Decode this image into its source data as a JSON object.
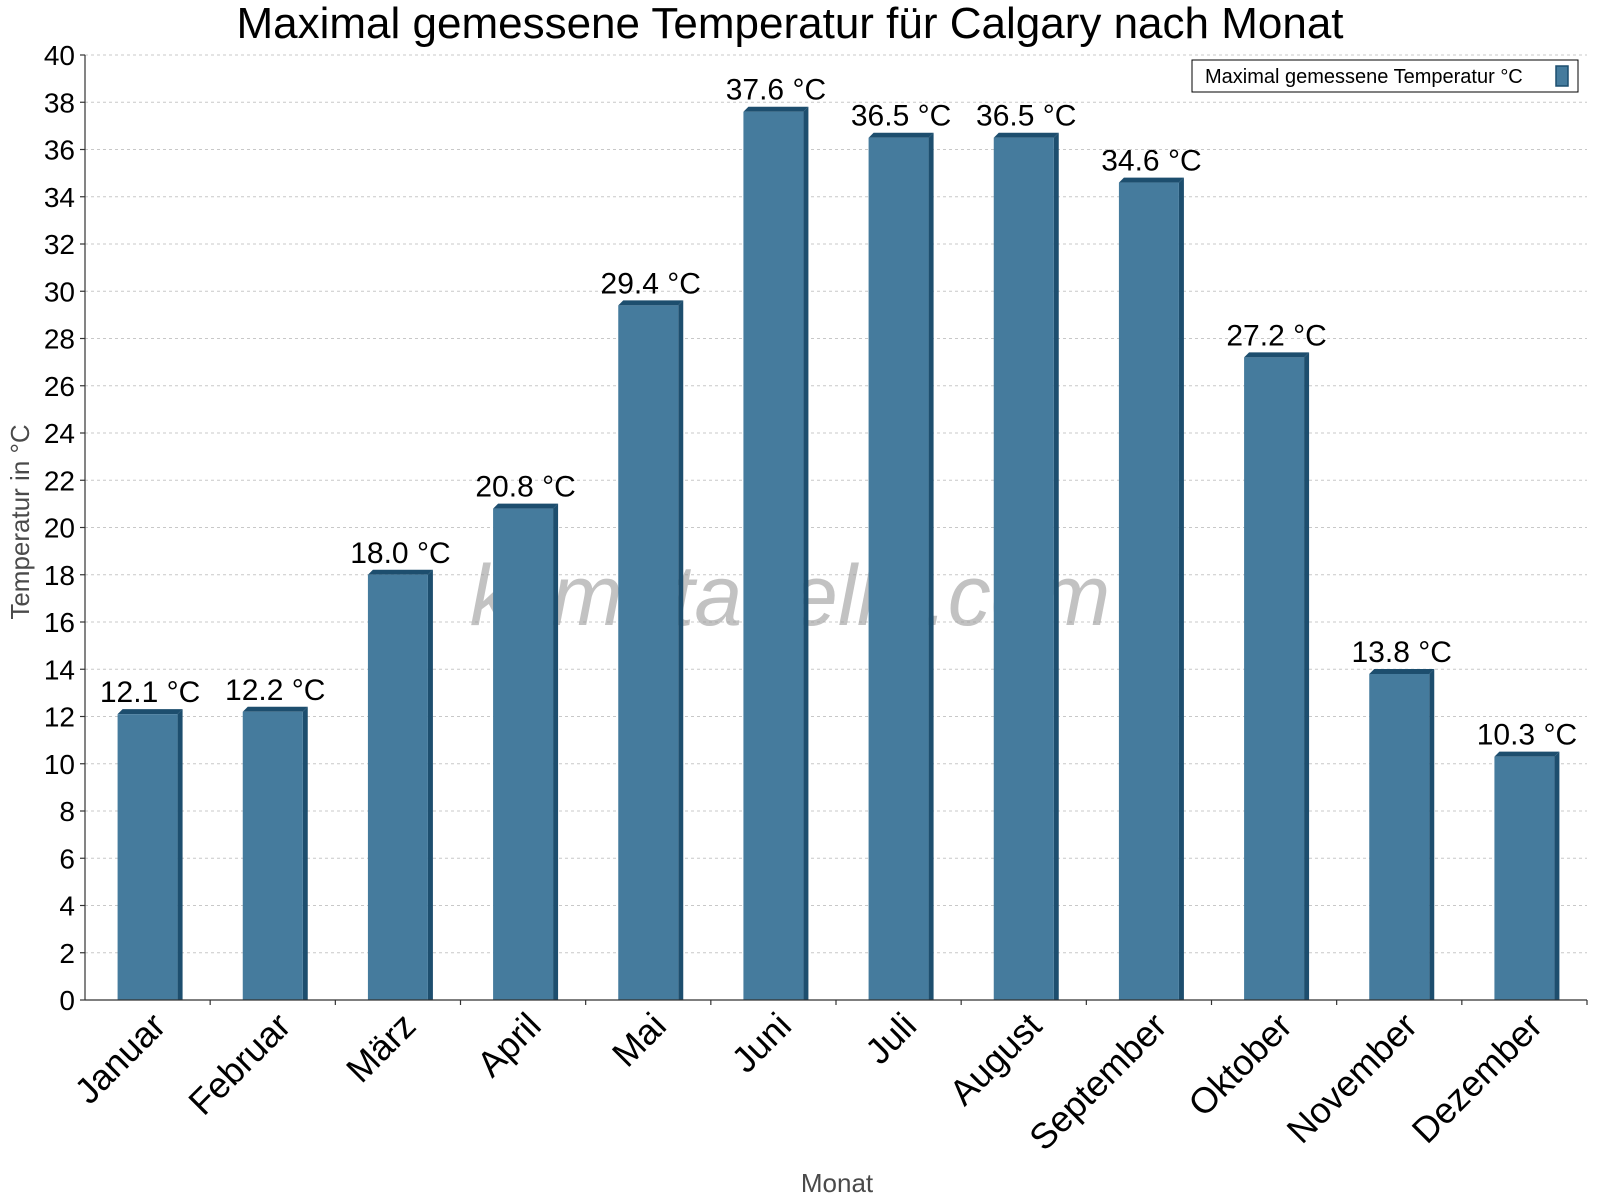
{
  "chart_data": {
    "type": "bar",
    "title": "Maximal gemessene Temperatur für Calgary nach Monat",
    "xlabel": "Monat",
    "ylabel": "Temperatur in °C",
    "ylim": [
      0,
      40
    ],
    "ytick_step": 2,
    "grid": true,
    "legend_position": "top-right",
    "categories": [
      "Januar",
      "Februar",
      "März",
      "April",
      "Mai",
      "Juni",
      "Juli",
      "August",
      "September",
      "Oktober",
      "November",
      "Dezember"
    ],
    "series": [
      {
        "name": "Maximal gemessene Temperatur °C",
        "values": [
          12.1,
          12.2,
          18.0,
          20.8,
          29.4,
          37.6,
          36.5,
          36.5,
          34.6,
          27.2,
          13.8,
          10.3
        ],
        "labels": [
          "12.1 °C",
          "12.2 °C",
          "18.0 °C",
          "20.8 °C",
          "29.4 °C",
          "37.6 °C",
          "36.5 °C",
          "36.5 °C",
          "34.6 °C",
          "27.2 °C",
          "13.8 °C",
          "10.3 °C"
        ],
        "color": "#457b9d",
        "edge_color": "#1d4e6e"
      }
    ]
  },
  "watermark": "klimatabelle.com"
}
